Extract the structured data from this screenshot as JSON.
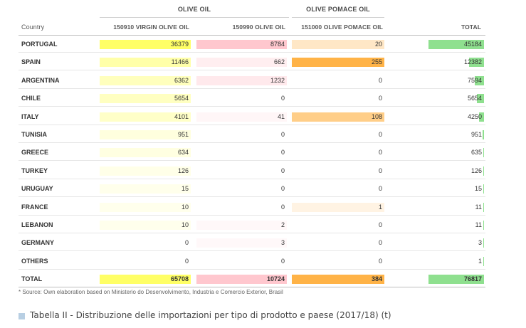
{
  "header": {
    "group_olive_oil": "OLIVE OIL",
    "group_pomace": "OLIVE POMACE OIL",
    "col_country": "Country",
    "col_virgin": "150910 VIRGIN OLIVE OIL",
    "col_olive": "150990 OLIVE OIL",
    "col_pomace": "151000 OLIVE POMACE OIL",
    "col_total": "TOTAL"
  },
  "rows": [
    {
      "country": "PORTUGAL",
      "virgin": 36379,
      "olive": 8784,
      "pomace": 20,
      "total": 45184
    },
    {
      "country": "SPAIN",
      "virgin": 11466,
      "olive": 662,
      "pomace": 255,
      "total": 12382
    },
    {
      "country": "ARGENTINA",
      "virgin": 6362,
      "olive": 1232,
      "pomace": 0,
      "total": 7594
    },
    {
      "country": "CHILE",
      "virgin": 5654,
      "olive": 0,
      "pomace": 0,
      "total": 5654
    },
    {
      "country": "ITALY",
      "virgin": 4101,
      "olive": 41,
      "pomace": 108,
      "total": 4250
    },
    {
      "country": "TUNISIA",
      "virgin": 951,
      "olive": 0,
      "pomace": 0,
      "total": 951
    },
    {
      "country": "GREECE",
      "virgin": 634,
      "olive": 0,
      "pomace": 0,
      "total": 635
    },
    {
      "country": "TURKEY",
      "virgin": 126,
      "olive": 0,
      "pomace": 0,
      "total": 126
    },
    {
      "country": "URUGUAY",
      "virgin": 15,
      "olive": 0,
      "pomace": 0,
      "total": 15
    },
    {
      "country": "FRANCE",
      "virgin": 10,
      "olive": 0,
      "pomace": 1,
      "total": 11
    },
    {
      "country": "LEBANON",
      "virgin": 10,
      "olive": 2,
      "pomace": 0,
      "total": 11
    },
    {
      "country": "GERMANY",
      "virgin": 0,
      "olive": 3,
      "pomace": 0,
      "total": 3
    },
    {
      "country": "OTHERS",
      "virgin": 0,
      "olive": 0,
      "pomace": 0,
      "total": 1
    }
  ],
  "totals": {
    "country": "TOTAL",
    "virgin": 65708,
    "olive": 10724,
    "pomace": 384,
    "total": 76817
  },
  "colors": {
    "virgin": "#ffff66",
    "olive": "#ffc7ce",
    "pomace": "#ffb347",
    "total": "#8fe08f"
  },
  "footnote": "* Source: Own elaboration based on Ministerio do Desenvolvimento, Industria e Comercio Exterior, Brasil",
  "caption": "Tabella II - Distribuzione delle importazioni per tipo di prodotto e paese (2017/18) (t)"
}
